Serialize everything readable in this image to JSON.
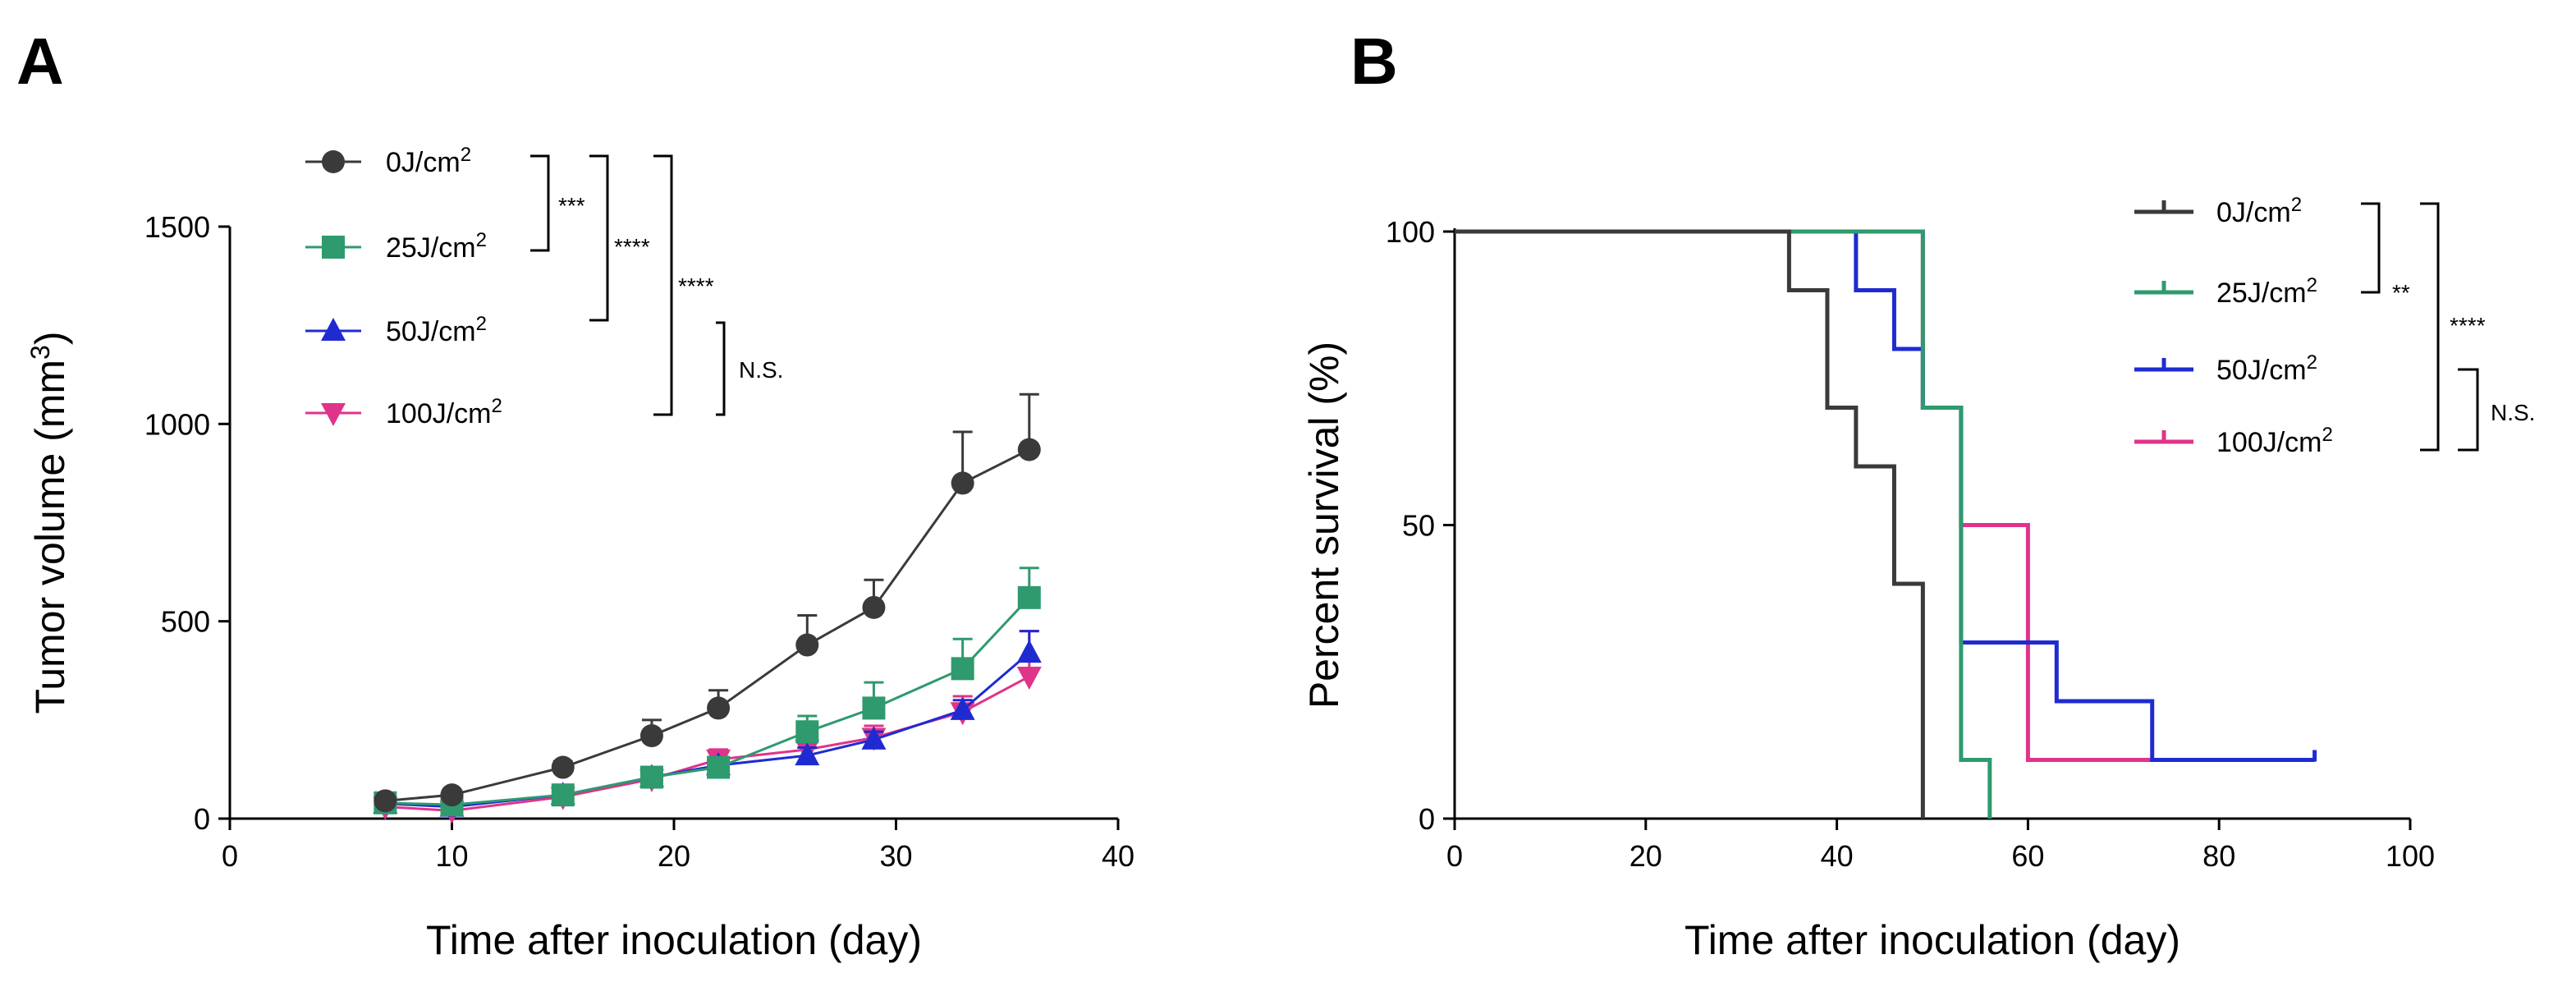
{
  "panels": {
    "a_label": "A",
    "b_label": "B"
  },
  "colors": {
    "0J": "#3a3a3a",
    "25J": "#2e9a6e",
    "50J": "#1f2bd1",
    "100J": "#e0338a"
  },
  "chart_data": [
    {
      "type": "line",
      "panel": "A",
      "xlabel": "Time after inoculation (day)",
      "ylabel": "Tumor volume (mm",
      "ylabel_sup": "3",
      "ylabel_suffix": ")",
      "xlim": [
        0,
        40
      ],
      "ylim": [
        0,
        1500
      ],
      "xticks": [
        "0",
        "10",
        "20",
        "30",
        "40"
      ],
      "yticks": [
        "0",
        "500",
        "1000",
        "1500"
      ],
      "grid": false,
      "legend_position": "top-left",
      "x": [
        7,
        10,
        15,
        19,
        22,
        26,
        29,
        33,
        36
      ],
      "series": [
        {
          "name": "0J/cm",
          "sup": "2",
          "key": "0J",
          "marker": "circle",
          "values": [
            45,
            60,
            130,
            210,
            280,
            440,
            535,
            850,
            935
          ],
          "errors": [
            8,
            10,
            15,
            40,
            45,
            75,
            70,
            130,
            140
          ]
        },
        {
          "name": "25J/cm",
          "sup": "2",
          "key": "25J",
          "marker": "square",
          "values": [
            40,
            35,
            60,
            105,
            130,
            220,
            280,
            380,
            560
          ],
          "errors": [
            6,
            6,
            10,
            20,
            25,
            40,
            65,
            75,
            75
          ]
        },
        {
          "name": "50J/cm",
          "sup": "2",
          "key": "50J",
          "marker": "triangle-up",
          "values": [
            38,
            30,
            60,
            105,
            135,
            160,
            200,
            275,
            420
          ],
          "errors": [
            5,
            5,
            8,
            15,
            20,
            20,
            20,
            25,
            55
          ]
        },
        {
          "name": "100J/cm",
          "sup": "2",
          "key": "100J",
          "marker": "triangle-down",
          "values": [
            30,
            20,
            55,
            100,
            150,
            175,
            205,
            270,
            360
          ],
          "errors": [
            5,
            5,
            8,
            15,
            25,
            25,
            30,
            40,
            115
          ]
        }
      ],
      "significance": [
        {
          "label": "***",
          "between": [
            "0J",
            "25J"
          ]
        },
        {
          "label": "****",
          "between": [
            "0J",
            "50J"
          ]
        },
        {
          "label": "****",
          "between": [
            "0J",
            "100J"
          ]
        },
        {
          "label": "N.S.",
          "between": [
            "50J",
            "100J"
          ]
        }
      ]
    },
    {
      "type": "line",
      "panel": "B",
      "step": true,
      "xlabel": "Time after inoculation (day)",
      "ylabel": "Percent survival (%)",
      "xlim": [
        0,
        100
      ],
      "ylim": [
        0,
        100
      ],
      "xticks": [
        "0",
        "20",
        "40",
        "60",
        "80",
        "100"
      ],
      "yticks": [
        "0",
        "50",
        "100"
      ],
      "grid": false,
      "legend_position": "top-right",
      "series": [
        {
          "name": "0J/cm",
          "sup": "2",
          "key": "0J",
          "points": [
            [
              0,
              100
            ],
            [
              35,
              100
            ],
            [
              35,
              90
            ],
            [
              39,
              90
            ],
            [
              39,
              70
            ],
            [
              42,
              70
            ],
            [
              42,
              60
            ],
            [
              46,
              60
            ],
            [
              46,
              40
            ],
            [
              49,
              40
            ],
            [
              49,
              0
            ]
          ]
        },
        {
          "name": "25J/cm",
          "sup": "2",
          "key": "25J",
          "points": [
            [
              0,
              100
            ],
            [
              49,
              100
            ],
            [
              49,
              70
            ],
            [
              53,
              70
            ],
            [
              53,
              10
            ],
            [
              56,
              10
            ],
            [
              56,
              0
            ]
          ]
        },
        {
          "name": "50J/cm",
          "sup": "2",
          "key": "50J",
          "points": [
            [
              0,
              100
            ],
            [
              42,
              100
            ],
            [
              42,
              90
            ],
            [
              46,
              90
            ],
            [
              46,
              80
            ],
            [
              49,
              80
            ],
            [
              49,
              70
            ],
            [
              53,
              70
            ],
            [
              53,
              30
            ],
            [
              63,
              30
            ],
            [
              63,
              20
            ],
            [
              73,
              20
            ],
            [
              73,
              10
            ],
            [
              90,
              10
            ]
          ]
        },
        {
          "name": "100J/cm",
          "sup": "2",
          "key": "100J",
          "points": [
            [
              0,
              100
            ],
            [
              49,
              100
            ],
            [
              49,
              70
            ],
            [
              53,
              70
            ],
            [
              53,
              50
            ],
            [
              60,
              50
            ],
            [
              60,
              10
            ],
            [
              73,
              10
            ]
          ]
        }
      ],
      "censor_x": 90,
      "significance": [
        {
          "label": "**",
          "between": [
            "0J",
            "25J"
          ]
        },
        {
          "label": "****",
          "between": [
            "0J",
            "100J"
          ]
        },
        {
          "label": "N.S.",
          "between": [
            "50J",
            "100J"
          ]
        }
      ]
    }
  ]
}
